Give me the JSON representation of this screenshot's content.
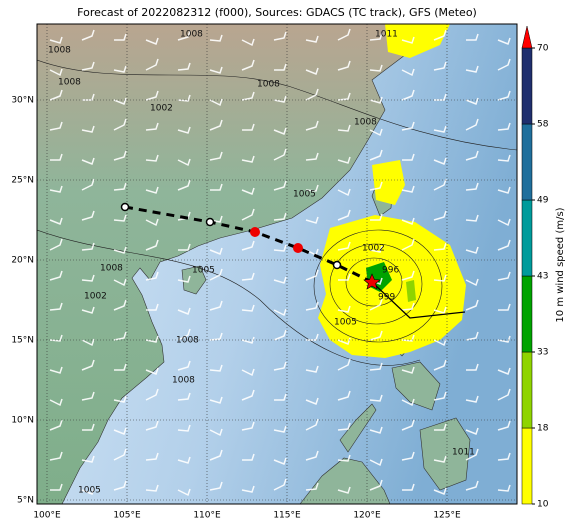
{
  "title": "Forecast of 2022082312 (f000), Sources: GDACS (TC track), GFS (Meteo)",
  "axes": {
    "lon_ticks": [
      {
        "value": 100,
        "label": "100°E"
      },
      {
        "value": 105,
        "label": "105°E"
      },
      {
        "value": 110,
        "label": "110°E"
      },
      {
        "value": 115,
        "label": "115°E"
      },
      {
        "value": 120,
        "label": "120°E"
      },
      {
        "value": 125,
        "label": "125°E"
      }
    ],
    "lat_ticks": [
      {
        "value": 30,
        "label": "30°N"
      },
      {
        "value": 25,
        "label": "25°N"
      },
      {
        "value": 20,
        "label": "20°N"
      },
      {
        "value": 15,
        "label": "15°N"
      },
      {
        "value": 10,
        "label": "10°N"
      },
      {
        "value": 5,
        "label": "5°N"
      }
    ]
  },
  "colorbar": {
    "label": "10 m wind speed (m/s)",
    "ticks": [
      10,
      18,
      33,
      43,
      49,
      58,
      70
    ],
    "colors": [
      "#ffff00",
      "#8fd400",
      "#00a300",
      "#009b9b",
      "#1f6f9c",
      "#1f2f6e"
    ],
    "extend_color": "#ff0000"
  },
  "isobar_labels": [
    "1008",
    "1008",
    "1008",
    "1008",
    "1002",
    "1008",
    "1011",
    "1005",
    "1002",
    "996",
    "999",
    "1005",
    "1008",
    "1005",
    "1008",
    "1005",
    "1011",
    "1002",
    "1008"
  ]
}
